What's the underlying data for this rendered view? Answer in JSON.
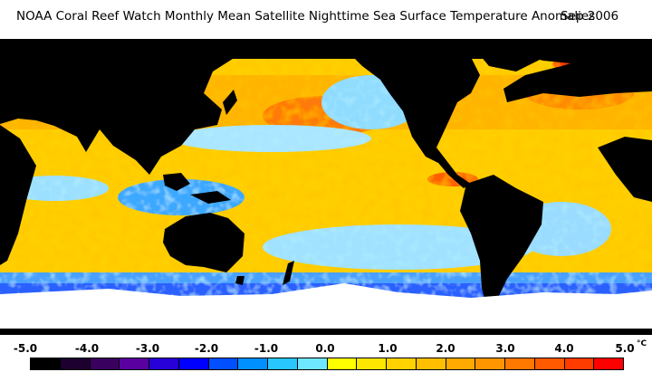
{
  "title": {
    "main": "NOAA Coral Reef Watch Monthly Mean Satellite Nighttime Sea Surface Temperature Anomalies",
    "date": "Sep 2006"
  },
  "legend": {
    "unit": "°C",
    "ticks": [
      "-5.0",
      "-4.0",
      "-3.0",
      "-2.0",
      "-1.0",
      "0.0",
      "1.0",
      "2.0",
      "3.0",
      "4.0",
      "5.0"
    ],
    "colors": [
      "#000000",
      "#1e0030",
      "#3a0060",
      "#5a00a0",
      "#2800d8",
      "#0000ff",
      "#0050ff",
      "#0090ff",
      "#28c8ff",
      "#6ee8ff",
      "#ffff00",
      "#ffe600",
      "#ffd200",
      "#ffbe00",
      "#ffaa00",
      "#ff9600",
      "#ff7800",
      "#ff5a00",
      "#ff3c00",
      "#ff0000"
    ]
  },
  "colors": {
    "land": "#000000",
    "ice": "#ffffff",
    "ocean_cool": "#7fd8ff",
    "ocean_neutral": "#ffe800",
    "ocean_warm": "#ffb000",
    "ocean_hot": "#ff6a00"
  }
}
